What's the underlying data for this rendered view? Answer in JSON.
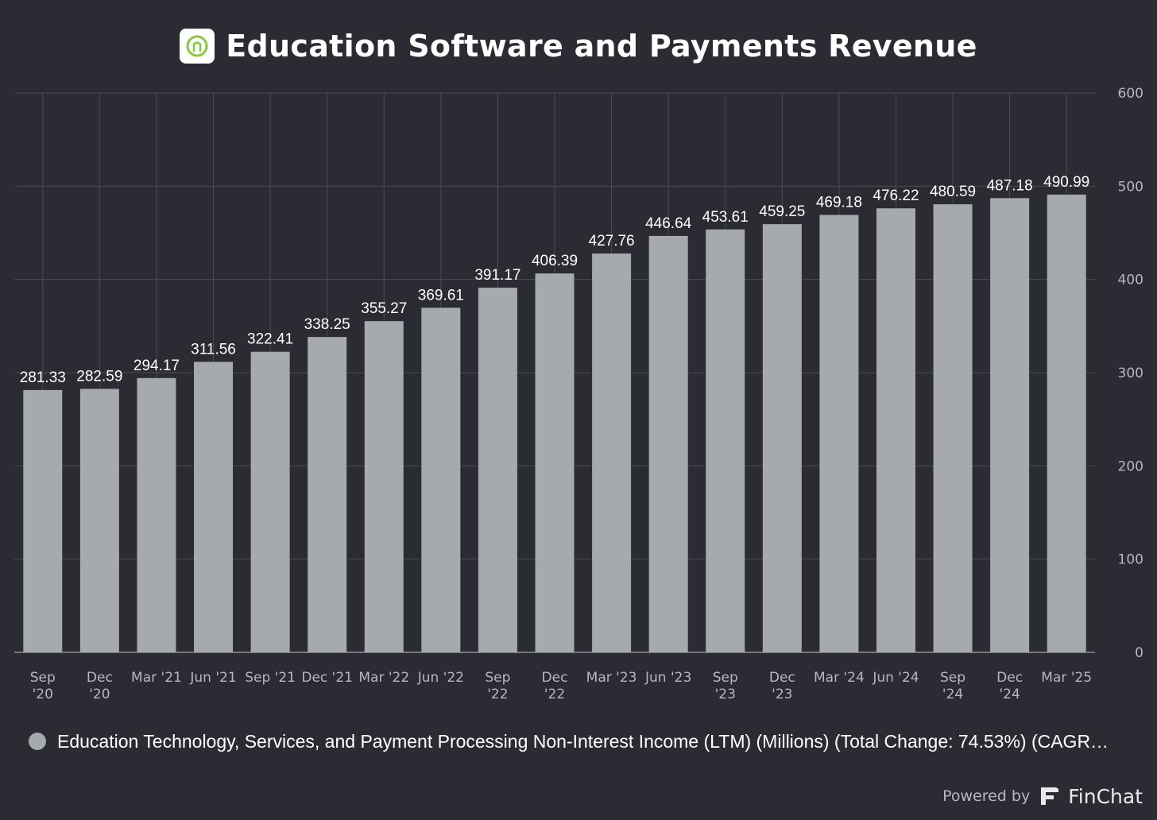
{
  "header": {
    "title": "Education Software and Payments Revenue",
    "logo_icon": "nelnet-circle-logo-icon"
  },
  "chart_data": {
    "type": "bar",
    "title": "Education Software and Payments Revenue",
    "categories": [
      [
        "Sep",
        "'20"
      ],
      [
        "Dec",
        "'20"
      ],
      [
        "Mar '21"
      ],
      [
        "Jun '21"
      ],
      [
        "Sep '21"
      ],
      [
        "Dec '21"
      ],
      [
        "Mar '22"
      ],
      [
        "Jun '22"
      ],
      [
        "Sep",
        "'22"
      ],
      [
        "Dec",
        "'22"
      ],
      [
        "Mar '23"
      ],
      [
        "Jun '23"
      ],
      [
        "Sep",
        "'23"
      ],
      [
        "Dec",
        "'23"
      ],
      [
        "Mar '24"
      ],
      [
        "Jun '24"
      ],
      [
        "Sep",
        "'24"
      ],
      [
        "Dec",
        "'24"
      ],
      [
        "Mar '25"
      ]
    ],
    "values": [
      281.33,
      282.59,
      294.17,
      311.56,
      322.41,
      338.25,
      355.27,
      369.61,
      391.17,
      406.39,
      427.76,
      446.64,
      453.61,
      459.25,
      469.18,
      476.22,
      480.59,
      487.18,
      490.99
    ],
    "value_labels": [
      "281.33",
      "282.59",
      "294.17",
      "311.56",
      "322.41",
      "338.25",
      "355.27",
      "369.61",
      "391.17",
      "406.39",
      "427.76",
      "446.64",
      "453.61",
      "459.25",
      "469.18",
      "476.22",
      "480.59",
      "487.18",
      "490.99"
    ],
    "y_ticks": [
      0,
      100,
      200,
      300,
      400,
      500,
      600
    ],
    "y_tick_labels": [
      "0",
      "100",
      "200",
      "300",
      "400",
      "500",
      "600"
    ],
    "ylim": [
      0,
      600
    ],
    "y_axis_side": "right",
    "grid": true,
    "xlabel": "",
    "ylabel": "",
    "legend_position": "bottom-left",
    "series": [
      {
        "name": "Education Technology, Services, and Payment Processing Non-Interest Income (LTM) (Millions) (Total Change: 74.53%) (CAGR…",
        "color": "#a6aaad"
      }
    ]
  },
  "legend": {
    "text": "Education Technology, Services, and Payment Processing Non-Interest Income (LTM) (Millions) (Total Change: 74.53%) (CAGR…",
    "dot_color": "#a6aaad"
  },
  "footer": {
    "powered_by": "Powered by",
    "brand_icon": "finchat-f-logo-icon",
    "brand": "FinChat"
  },
  "colors": {
    "background": "#2b2c33",
    "bar": "#a6aaad",
    "grid": "#4a4c55",
    "axis": "#8d9097",
    "text": "#ffffff",
    "muted_text": "#b5b8bf",
    "logo_accent": "#8cc63f"
  }
}
